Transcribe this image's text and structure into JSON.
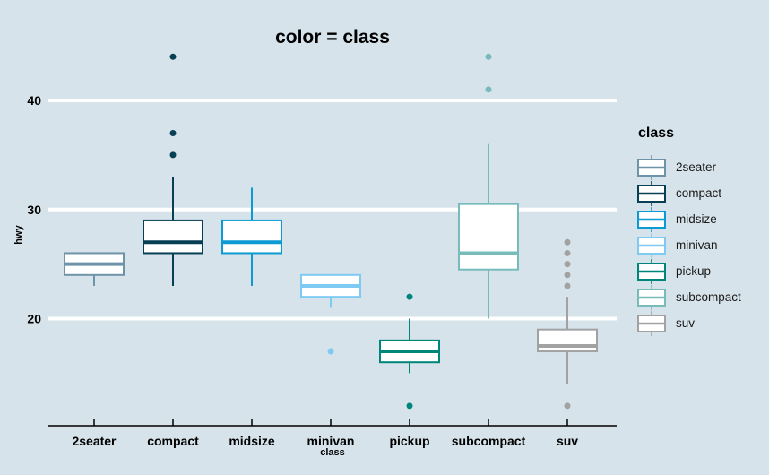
{
  "chart_data": {
    "type": "boxplot",
    "title": "color = class",
    "xlabel": "class",
    "ylabel": "hwy",
    "categories": [
      "2seater",
      "compact",
      "midsize",
      "minivan",
      "pickup",
      "subcompact",
      "suv"
    ],
    "yticks": [
      40,
      30,
      20
    ],
    "ylim": [
      10,
      48
    ],
    "grid": "horizontal white gridlines at yticks",
    "legend_position": "right",
    "series": [
      {
        "name": "2seater",
        "color": "#6f94a9",
        "whisker_low": 23,
        "q1": 24,
        "median": 25,
        "q3": 26,
        "whisker_high": 26,
        "outliers": []
      },
      {
        "name": "compact",
        "color": "#073f55",
        "whisker_low": 23,
        "q1": 26,
        "median": 27,
        "q3": 29,
        "whisker_high": 33,
        "outliers": [
          35,
          37,
          44
        ]
      },
      {
        "name": "midsize",
        "color": "#0b9ad1",
        "whisker_low": 23,
        "q1": 26,
        "median": 27,
        "q3": 29,
        "whisker_high": 32,
        "outliers": []
      },
      {
        "name": "minivan",
        "color": "#7fcaf2",
        "whisker_low": 21,
        "q1": 22,
        "median": 23,
        "q3": 24,
        "whisker_high": 24,
        "outliers": [
          17
        ]
      },
      {
        "name": "pickup",
        "color": "#00857a",
        "whisker_low": 15,
        "q1": 16,
        "median": 17,
        "q3": 18,
        "whisker_high": 20,
        "outliers": [
          22,
          12
        ]
      },
      {
        "name": "subcompact",
        "color": "#77bcba",
        "whisker_low": 20,
        "q1": 24.5,
        "median": 26,
        "q3": 30.5,
        "whisker_high": 36,
        "outliers": [
          44,
          41
        ]
      },
      {
        "name": "suv",
        "color": "#a2a2a2",
        "whisker_low": 14,
        "q1": 17,
        "median": 17.5,
        "q3": 19,
        "whisker_high": 22,
        "outliers": [
          27,
          26,
          25,
          24,
          23,
          12
        ]
      }
    ]
  },
  "legend": {
    "title": "class"
  },
  "colors": {
    "background": "#d6e3ea",
    "gridline": "#ffffff",
    "axis": "#000000",
    "box_fill": "#ffffff"
  }
}
